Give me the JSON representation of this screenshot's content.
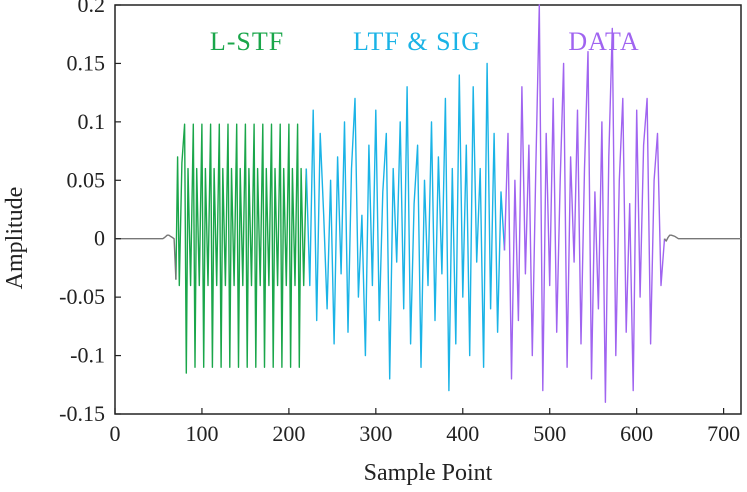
{
  "chart_data": {
    "type": "line",
    "xlabel": "Sample Point",
    "ylabel": "Amplitude",
    "xlim": [
      0,
      720
    ],
    "ylim": [
      -0.15,
      0.2
    ],
    "xticks": [
      0,
      100,
      200,
      300,
      400,
      500,
      600,
      700
    ],
    "yticks": [
      0.2,
      0.15,
      0.1,
      0.05,
      0,
      -0.05,
      -0.1,
      -0.15
    ],
    "xtick_labels": [
      "0",
      "100",
      "200",
      "300",
      "400",
      "500",
      "600",
      "700"
    ],
    "ytick_labels": [
      "0.2",
      "0.15",
      "0.1",
      "0.05",
      "0",
      "-0.05",
      "-0.1",
      "-0.15"
    ],
    "grid": false,
    "series": [
      {
        "name": "L-STF",
        "color": "#1aa64a",
        "x": [
          70,
          72,
          74,
          77,
          80,
          82,
          84,
          87,
          90,
          92,
          94,
          97,
          100,
          102,
          104,
          107,
          110,
          112,
          114,
          117,
          120,
          122,
          124,
          127,
          130,
          132,
          134,
          137,
          140,
          142,
          144,
          147,
          150,
          152,
          154,
          157,
          160,
          162,
          164,
          167,
          170,
          172,
          174,
          177,
          180,
          182,
          184,
          187,
          190,
          192,
          194,
          197,
          200,
          202,
          204,
          207,
          210,
          212,
          214,
          217,
          220
        ],
        "y": [
          -0.035,
          0.07,
          -0.04,
          0.065,
          0.098,
          -0.115,
          0.06,
          -0.04,
          0.098,
          -0.11,
          0.06,
          -0.04,
          0.098,
          -0.11,
          0.06,
          -0.04,
          0.098,
          -0.11,
          0.06,
          -0.04,
          0.098,
          -0.11,
          0.06,
          -0.04,
          0.098,
          -0.11,
          0.06,
          -0.04,
          0.098,
          -0.11,
          0.06,
          -0.04,
          0.098,
          -0.11,
          0.06,
          -0.04,
          0.098,
          -0.11,
          0.06,
          -0.04,
          0.098,
          -0.11,
          0.06,
          -0.04,
          0.098,
          -0.11,
          0.06,
          -0.04,
          0.098,
          -0.11,
          0.06,
          -0.04,
          0.098,
          -0.11,
          0.06,
          -0.04,
          0.098,
          -0.11,
          0.06,
          -0.04,
          0.06
        ]
      },
      {
        "name": "LTF & SIG",
        "color": "#1ab3e6",
        "x": [
          220,
          224,
          228,
          232,
          236,
          240,
          244,
          248,
          252,
          256,
          260,
          264,
          268,
          272,
          276,
          280,
          284,
          288,
          292,
          296,
          300,
          304,
          308,
          312,
          316,
          320,
          324,
          328,
          332,
          336,
          340,
          344,
          348,
          352,
          356,
          360,
          364,
          368,
          372,
          376,
          380,
          384,
          388,
          392,
          396,
          400,
          404,
          408,
          412,
          416,
          420,
          424,
          428,
          432,
          436,
          440,
          444,
          448
        ],
        "y": [
          0.06,
          -0.04,
          0.11,
          -0.07,
          0.09,
          0.02,
          -0.06,
          0.05,
          -0.09,
          0.07,
          -0.03,
          0.1,
          -0.08,
          0.06,
          0.12,
          -0.05,
          0.02,
          -0.1,
          0.08,
          -0.04,
          0.11,
          -0.07,
          0.04,
          0.09,
          -0.12,
          0.06,
          -0.02,
          0.1,
          -0.06,
          0.13,
          -0.09,
          0.03,
          0.08,
          -0.11,
          0.05,
          -0.04,
          0.1,
          -0.07,
          0.07,
          -0.03,
          0.12,
          -0.13,
          0.06,
          -0.09,
          0.14,
          -0.05,
          0.08,
          -0.1,
          0.13,
          -0.02,
          0.06,
          -0.11,
          0.15,
          -0.06,
          0.09,
          -0.08,
          0.04,
          -0.01
        ]
      },
      {
        "name": "DATA",
        "color": "#a064f0",
        "x": [
          448,
          452,
          456,
          460,
          464,
          468,
          472,
          476,
          480,
          484,
          488,
          492,
          496,
          500,
          504,
          508,
          512,
          516,
          520,
          524,
          528,
          532,
          536,
          540,
          544,
          548,
          552,
          556,
          560,
          564,
          568,
          572,
          576,
          580,
          584,
          588,
          592,
          596,
          600,
          604,
          608,
          612,
          616,
          620,
          624,
          628,
          632
        ],
        "y": [
          -0.01,
          0.09,
          -0.12,
          0.05,
          -0.07,
          0.13,
          -0.03,
          0.08,
          -0.1,
          0.06,
          0.2,
          -0.13,
          0.09,
          -0.04,
          0.12,
          -0.08,
          0.05,
          0.15,
          -0.11,
          0.07,
          -0.02,
          0.11,
          -0.09,
          0.06,
          0.16,
          -0.12,
          0.04,
          -0.06,
          0.1,
          -0.14,
          0.07,
          0.18,
          -0.1,
          0.05,
          0.12,
          -0.08,
          0.03,
          -0.13,
          0.11,
          -0.05,
          0.08,
          0.12,
          -0.09,
          0.05,
          0.09,
          -0.04,
          0.0
        ]
      },
      {
        "name": "",
        "color": "#777777",
        "x": [
          0,
          55,
          57,
          60,
          62,
          64,
          66,
          68,
          70
        ],
        "y": [
          0,
          0,
          0.001,
          0.003,
          0.003,
          0.002,
          0.001,
          0.0,
          -0.035
        ]
      },
      {
        "name": "",
        "color": "#777777",
        "x": [
          632,
          634,
          636,
          638,
          640,
          644,
          648,
          652,
          720
        ],
        "y": [
          0.0,
          -0.002,
          0.001,
          0.003,
          0.003,
          0.002,
          0.0,
          0,
          0
        ]
      }
    ],
    "annotations": [
      {
        "text": "L-STF",
        "color": "#1aa64a"
      },
      {
        "text": "LTF & SIG",
        "color": "#1ab3e6"
      },
      {
        "text": "DATA",
        "color": "#a064f0"
      }
    ]
  }
}
